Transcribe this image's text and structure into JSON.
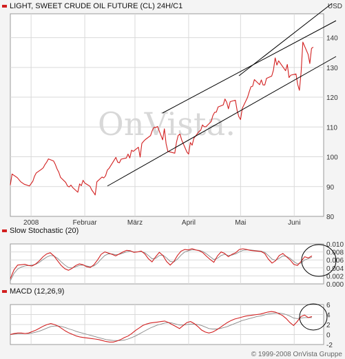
{
  "chart_data": [
    {
      "type": "line",
      "title": "LIGHT, SWEET CRUDE OIL FUTURE (CL) 24H/C1",
      "unit": "USD",
      "ylim": [
        80,
        148
      ],
      "yticks": [
        80,
        90,
        100,
        110,
        120,
        130,
        140
      ],
      "xlim": [
        "2007-12-20",
        "2008-06-18"
      ],
      "month_ticks": [
        {
          "date": "2008-01-01",
          "label": "2008"
        },
        {
          "date": "2008-02-01",
          "label": "Februar"
        },
        {
          "date": "2008-03-01",
          "label": "März"
        },
        {
          "date": "2008-04-01",
          "label": "April"
        },
        {
          "date": "2008-05-01",
          "label": "Mai"
        },
        {
          "date": "2008-06-01",
          "label": "Juni"
        }
      ],
      "grid": true,
      "color": "#d21f1f",
      "series": [
        {
          "values": [
            [
              "2007-12-20",
              90.5
            ],
            [
              "2007-12-21",
              94.2
            ],
            [
              "2007-12-24",
              93.0
            ],
            [
              "2007-12-26",
              91.6
            ],
            [
              "2007-12-28",
              90.8
            ],
            [
              "2007-12-31",
              90.2
            ],
            [
              "2008-01-02",
              91.8
            ],
            [
              "2008-01-03",
              93.5
            ],
            [
              "2008-01-04",
              94.6
            ],
            [
              "2008-01-07",
              95.8
            ],
            [
              "2008-01-08",
              96.3
            ],
            [
              "2008-01-09",
              97.4
            ],
            [
              "2008-01-10",
              98.2
            ],
            [
              "2008-01-11",
              99.3
            ],
            [
              "2008-01-14",
              98.6
            ],
            [
              "2008-01-15",
              97.4
            ],
            [
              "2008-01-16",
              95.9
            ],
            [
              "2008-01-17",
              94.8
            ],
            [
              "2008-01-18",
              93.1
            ],
            [
              "2008-01-21",
              91.4
            ],
            [
              "2008-01-22",
              90.2
            ],
            [
              "2008-01-23",
              89.9
            ],
            [
              "2008-01-24",
              90.5
            ],
            [
              "2008-01-25",
              89.7
            ],
            [
              "2008-01-28",
              88.1
            ],
            [
              "2008-01-29",
              90.9
            ],
            [
              "2008-01-30",
              90.3
            ],
            [
              "2008-01-31",
              92.1
            ],
            [
              "2008-02-01",
              91.2
            ],
            [
              "2008-02-04",
              90.1
            ],
            [
              "2008-02-05",
              88.9
            ],
            [
              "2008-02-06",
              88.1
            ],
            [
              "2008-02-07",
              87.2
            ],
            [
              "2008-02-08",
              91.6
            ],
            [
              "2008-02-11",
              93.2
            ],
            [
              "2008-02-12",
              92.9
            ],
            [
              "2008-02-13",
              93.6
            ],
            [
              "2008-02-14",
              95.5
            ],
            [
              "2008-02-15",
              96.1
            ],
            [
              "2008-02-19",
              99.8
            ],
            [
              "2008-02-20",
              98.2
            ],
            [
              "2008-02-21",
              98.0
            ],
            [
              "2008-02-22",
              99.2
            ],
            [
              "2008-02-25",
              99.6
            ],
            [
              "2008-02-26",
              100.9
            ],
            [
              "2008-02-27",
              99.6
            ],
            [
              "2008-02-28",
              102.2
            ],
            [
              "2008-02-29",
              101.8
            ],
            [
              "2008-03-03",
              103.2
            ],
            [
              "2008-03-04",
              99.9
            ],
            [
              "2008-03-05",
              104.5
            ],
            [
              "2008-03-06",
              105.2
            ],
            [
              "2008-03-07",
              105.8
            ],
            [
              "2008-03-10",
              107.1
            ],
            [
              "2008-03-11",
              108.8
            ],
            [
              "2008-03-12",
              109.9
            ],
            [
              "2008-03-13",
              109.8
            ],
            [
              "2008-03-14",
              110.2
            ],
            [
              "2008-03-17",
              105.7
            ],
            [
              "2008-03-18",
              109.4
            ],
            [
              "2008-03-19",
              104.4
            ],
            [
              "2008-03-20",
              101.8
            ],
            [
              "2008-03-24",
              101.2
            ],
            [
              "2008-03-25",
              104.9
            ],
            [
              "2008-03-26",
              107.2
            ],
            [
              "2008-03-27",
              107.6
            ],
            [
              "2008-03-28",
              105.6
            ],
            [
              "2008-03-31",
              101.6
            ],
            [
              "2008-04-01",
              100.9
            ],
            [
              "2008-04-02",
              104.8
            ],
            [
              "2008-04-03",
              103.9
            ],
            [
              "2008-04-04",
              106.2
            ],
            [
              "2008-04-07",
              108.5
            ],
            [
              "2008-04-08",
              108.9
            ],
            [
              "2008-04-09",
              110.7
            ],
            [
              "2008-04-10",
              110.1
            ],
            [
              "2008-04-11",
              110.1
            ],
            [
              "2008-04-14",
              111.8
            ],
            [
              "2008-04-15",
              113.8
            ],
            [
              "2008-04-16",
              114.9
            ],
            [
              "2008-04-17",
              115.0
            ],
            [
              "2008-04-18",
              116.7
            ],
            [
              "2008-04-21",
              117.4
            ],
            [
              "2008-04-22",
              119.4
            ],
            [
              "2008-04-23",
              118.3
            ],
            [
              "2008-04-24",
              116.1
            ],
            [
              "2008-04-25",
              118.5
            ],
            [
              "2008-04-28",
              119.0
            ],
            [
              "2008-04-29",
              115.6
            ],
            [
              "2008-04-30",
              113.5
            ],
            [
              "2008-05-01",
              112.5
            ],
            [
              "2008-05-02",
              116.3
            ],
            [
              "2008-05-05",
              119.9
            ],
            [
              "2008-05-06",
              121.8
            ],
            [
              "2008-05-07",
              123.5
            ],
            [
              "2008-05-08",
              123.7
            ],
            [
              "2008-05-09",
              125.9
            ],
            [
              "2008-05-12",
              124.2
            ],
            [
              "2008-05-13",
              125.8
            ],
            [
              "2008-05-14",
              124.1
            ],
            [
              "2008-05-15",
              124.1
            ],
            [
              "2008-05-16",
              126.3
            ],
            [
              "2008-05-19",
              127.1
            ],
            [
              "2008-05-20",
              129.1
            ],
            [
              "2008-05-21",
              133.2
            ],
            [
              "2008-05-22",
              130.8
            ],
            [
              "2008-05-23",
              132.2
            ],
            [
              "2008-05-27",
              128.9
            ],
            [
              "2008-05-28",
              131.0
            ],
            [
              "2008-05-29",
              126.6
            ],
            [
              "2008-05-30",
              127.4
            ],
            [
              "2008-06-02",
              127.8
            ],
            [
              "2008-06-03",
              124.3
            ],
            [
              "2008-06-04",
              122.3
            ],
            [
              "2008-06-05",
              128.5
            ],
            [
              "2008-06-06",
              138.5
            ],
            [
              "2008-06-09",
              134.4
            ],
            [
              "2008-06-10",
              131.3
            ],
            [
              "2008-06-11",
              136.4
            ],
            [
              "2008-06-12",
              136.8
            ]
          ]
        }
      ]
    },
    {
      "type": "line",
      "title": "Slow Stochastic (20)",
      "ylim": [
        0,
        0.01
      ],
      "yticks": [
        0,
        0.002,
        0.004,
        0.006,
        0.008,
        0.01
      ],
      "ytick_labels": [
        "0.000",
        "0.002",
        "0.004",
        "0.006",
        "0.008",
        "0.010"
      ],
      "grid": true,
      "series": [
        {
          "color": "#d21f1f",
          "values": [
            0.0013,
            0.0035,
            0.0047,
            0.0048,
            0.0049,
            0.0046,
            0.0045,
            0.005,
            0.0058,
            0.0068,
            0.0075,
            0.0078,
            0.007,
            0.0058,
            0.0046,
            0.0038,
            0.0034,
            0.0039,
            0.0046,
            0.005,
            0.0048,
            0.0043,
            0.0041,
            0.0048,
            0.006,
            0.0074,
            0.008,
            0.0077,
            0.0074,
            0.007,
            0.0075,
            0.008,
            0.0084,
            0.0083,
            0.0079,
            0.008,
            0.0082,
            0.0075,
            0.0063,
            0.0055,
            0.0068,
            0.0079,
            0.0071,
            0.0056,
            0.0047,
            0.0056,
            0.0071,
            0.0082,
            0.0086,
            0.0085,
            0.0088,
            0.0085,
            0.0083,
            0.0078,
            0.0069,
            0.0061,
            0.0054,
            0.007,
            0.008,
            0.0076,
            0.0068,
            0.0074,
            0.0078,
            0.0086,
            0.0088,
            0.0086,
            0.0084,
            0.0083,
            0.0082,
            0.0081,
            0.0076,
            0.0062,
            0.0052,
            0.0058,
            0.0071,
            0.0076,
            0.0068,
            0.006,
            0.0049,
            0.0046,
            0.0056,
            0.0068,
            0.0065,
            0.007
          ]
        },
        {
          "color": "#888888",
          "values": [
            0.0008,
            0.0026,
            0.0037,
            0.0042,
            0.0045,
            0.0046,
            0.0047,
            0.0049,
            0.0054,
            0.0061,
            0.0067,
            0.0071,
            0.007,
            0.0064,
            0.0055,
            0.0047,
            0.0041,
            0.004,
            0.0043,
            0.0046,
            0.0047,
            0.0045,
            0.0043,
            0.0045,
            0.0052,
            0.0062,
            0.0071,
            0.0075,
            0.0075,
            0.0073,
            0.0074,
            0.0077,
            0.008,
            0.0082,
            0.008,
            0.008,
            0.0081,
            0.0078,
            0.0071,
            0.0063,
            0.0064,
            0.0071,
            0.0072,
            0.0065,
            0.0056,
            0.0055,
            0.0062,
            0.0072,
            0.008,
            0.0083,
            0.0085,
            0.0085,
            0.0084,
            0.0081,
            0.0075,
            0.0068,
            0.0061,
            0.0064,
            0.0071,
            0.0074,
            0.0071,
            0.0072,
            0.0075,
            0.008,
            0.0084,
            0.0085,
            0.0085,
            0.0084,
            0.0083,
            0.0082,
            0.0079,
            0.0071,
            0.0062,
            0.0059,
            0.0064,
            0.007,
            0.0069,
            0.0064,
            0.0056,
            0.005,
            0.0052,
            0.006,
            0.0063,
            0.0067
          ]
        }
      ]
    },
    {
      "type": "line",
      "title": "MACD (12,26,9)",
      "ylim": [
        -2,
        6
      ],
      "yticks": [
        -2,
        0,
        2,
        4,
        6
      ],
      "grid": true,
      "series": [
        {
          "color": "#d21f1f",
          "values": [
            0.0,
            0.2,
            0.3,
            0.3,
            0.2,
            0.3,
            0.6,
            0.9,
            1.3,
            1.7,
            2.0,
            2.2,
            2.0,
            1.7,
            1.2,
            0.7,
            0.3,
            0.0,
            -0.3,
            -0.5,
            -0.6,
            -0.7,
            -0.8,
            -0.9,
            -1.0,
            -1.2,
            -1.4,
            -1.5,
            -1.5,
            -1.3,
            -1.0,
            -0.6,
            -0.3,
            0.2,
            0.8,
            1.3,
            1.8,
            2.1,
            2.3,
            2.4,
            2.5,
            2.6,
            2.7,
            2.4,
            2.0,
            1.6,
            1.2,
            1.8,
            2.4,
            2.6,
            2.2,
            1.6,
            0.9,
            0.5,
            0.3,
            0.5,
            0.9,
            1.4,
            1.9,
            2.4,
            2.8,
            3.1,
            3.3,
            3.5,
            3.7,
            3.8,
            3.9,
            4.0,
            4.1,
            4.3,
            4.5,
            4.6,
            4.5,
            4.2,
            3.8,
            3.2,
            2.4,
            1.8,
            2.6,
            3.6,
            3.9,
            3.4,
            3.6
          ]
        },
        {
          "color": "#888888",
          "values": [
            0.0,
            0.1,
            0.2,
            0.2,
            0.2,
            0.2,
            0.3,
            0.5,
            0.7,
            1.0,
            1.3,
            1.6,
            1.7,
            1.7,
            1.6,
            1.4,
            1.1,
            0.9,
            0.6,
            0.4,
            0.2,
            0.0,
            -0.2,
            -0.4,
            -0.6,
            -0.8,
            -1.0,
            -1.1,
            -1.2,
            -1.2,
            -1.2,
            -1.1,
            -0.9,
            -0.6,
            -0.3,
            0.1,
            0.5,
            0.9,
            1.3,
            1.6,
            1.9,
            2.1,
            2.3,
            2.4,
            2.3,
            2.1,
            1.9,
            1.9,
            2.0,
            2.1,
            2.1,
            2.0,
            1.8,
            1.5,
            1.2,
            1.1,
            1.1,
            1.2,
            1.4,
            1.6,
            1.9,
            2.2,
            2.5,
            2.8,
            3.0,
            3.2,
            3.4,
            3.6,
            3.7,
            3.9,
            4.1,
            4.2,
            4.3,
            4.3,
            4.2,
            4.0,
            3.7,
            3.3,
            3.2,
            3.3,
            3.4,
            3.4,
            3.4
          ]
        }
      ]
    }
  ],
  "watermark": "OnVista.",
  "copyright": "© 1999-2008 OnVista Gruppe",
  "colors": {
    "price": "#d21f1f",
    "signal": "#888888",
    "frame": "#9a9a9a",
    "grid": "#d9d9d9",
    "background": "#f4f4f4"
  }
}
